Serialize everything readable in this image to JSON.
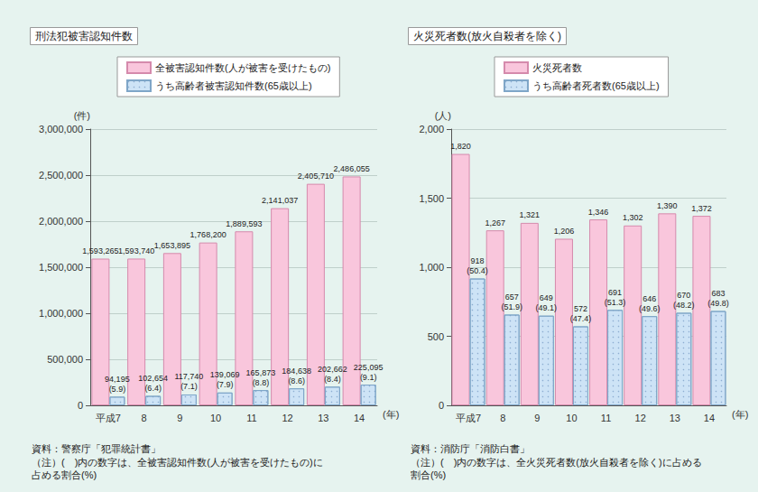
{
  "chart_data": [
    {
      "type": "bar",
      "title": "刑法犯被害認知件数",
      "x_label": "(年)",
      "y_label": "(件)",
      "categories": [
        "平成7",
        "8",
        "9",
        "10",
        "11",
        "12",
        "13",
        "14"
      ],
      "series": [
        {
          "name": "全被害認知件数(人が被害を受けたもの)",
          "color": "#f9c6dc",
          "values": [
            1593265,
            1593740,
            1653895,
            1768200,
            1889593,
            2141037,
            2405710,
            2486055
          ],
          "value_labels": [
            "1,593,265",
            "1,593,740",
            "1,653,895",
            "1,768,200",
            "1,889,593",
            "2,141,037",
            "2,405,710",
            "2,486,055"
          ]
        },
        {
          "name": "うち高齢者被害認知件数(65歳以上)",
          "color": "#cde3f6",
          "values": [
            94195,
            102654,
            117740,
            139069,
            165873,
            184638,
            202662,
            225095
          ],
          "value_labels": [
            "94,195",
            "102,654",
            "117,740",
            "139,069",
            "165,873",
            "184,638",
            "202,662",
            "225,095"
          ],
          "share_labels": [
            "(5.9)",
            "(6.4)",
            "(7.1)",
            "(7.9)",
            "(8.8)",
            "(8.6)",
            "(8.4)",
            "(9.1)"
          ]
        }
      ],
      "ylim": [
        0,
        3000000
      ],
      "yticks": [
        0,
        {
          "value": 500000,
          "label": "500,000"
        },
        {
          "value": 1000000,
          "label": "1,000,000"
        },
        {
          "value": 1500000,
          "label": "1,500,000"
        },
        {
          "value": 2000000,
          "label": "2,000,000"
        },
        {
          "value": 2500000,
          "label": "2,500,000"
        },
        {
          "value": 3000000,
          "label": "3,000,000"
        }
      ],
      "grid": true,
      "legend": "top",
      "data_labels": true,
      "annotations": [
        "資料：警察庁「犯罪統計書」",
        "（注）(　)内の数字は、全被害認知件数(人が被害を受けたもの)に占める割合(%)"
      ]
    },
    {
      "type": "bar",
      "title": "火災死者数(放火自殺者を除く)",
      "x_label": "(年)",
      "y_label": "(人)",
      "categories": [
        "平成7",
        "8",
        "9",
        "10",
        "11",
        "12",
        "13",
        "14"
      ],
      "series": [
        {
          "name": "火災死者数",
          "color": "#f9c6dc",
          "values": [
            1820,
            1267,
            1321,
            1206,
            1346,
            1302,
            1390,
            1372
          ],
          "value_labels": [
            "1,820",
            "1,267",
            "1,321",
            "1,206",
            "1,346",
            "1,302",
            "1,390",
            "1,372"
          ]
        },
        {
          "name": "うち高齢者死者数(65歳以上)",
          "color": "#cde3f6",
          "values": [
            918,
            657,
            649,
            572,
            691,
            646,
            670,
            683
          ],
          "share_labels": [
            "(50.4)",
            "(51.9)",
            "(49.1)",
            "(47.4)",
            "(51.3)",
            "(49.6)",
            "(48.2)",
            "(49.8)"
          ]
        }
      ],
      "ylim": [
        0,
        2000
      ],
      "yticks": [
        0,
        500,
        {
          "value": 1000,
          "label": "1,000"
        },
        {
          "value": 1500,
          "label": "1,500"
        },
        {
          "value": 2000,
          "label": "2,000"
        }
      ],
      "grid": true,
      "legend": "top",
      "data_labels": true,
      "annotations": [
        "資料：消防庁「消防白書」",
        "（注）(　)内の数字は、全火災死者数(放火自殺者を除く)に占める割合(%)"
      ]
    }
  ]
}
